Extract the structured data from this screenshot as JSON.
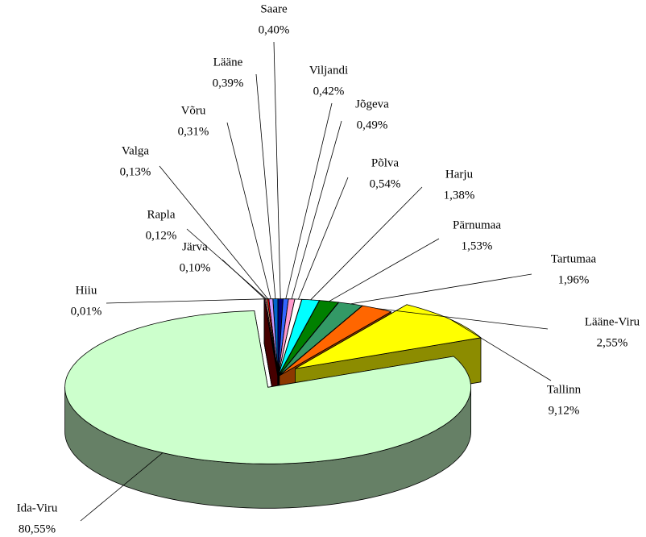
{
  "chart_data": {
    "type": "pie",
    "categories": [
      "Saare",
      "Viljandi",
      "Jõgeva",
      "Põlva",
      "Harju",
      "Pärnumaa",
      "Tartumaa",
      "Lääne-Viru",
      "Tallinn",
      "Ida-Viru",
      "Hiiu",
      "Järva",
      "Rapla",
      "Valga",
      "Võru",
      "Lääne"
    ],
    "values": [
      0.4,
      0.42,
      0.49,
      0.54,
      1.38,
      1.53,
      1.96,
      2.55,
      9.12,
      80.55,
      0.01,
      0.1,
      0.12,
      0.13,
      0.31,
      0.39
    ],
    "value_labels": [
      "0,40%",
      "0,42%",
      "0,49%",
      "0,54%",
      "1,38%",
      "1,53%",
      "1,96%",
      "2,55%",
      "9,12%",
      "80,55%",
      "0,01%",
      "0,10%",
      "0,12%",
      "0,13%",
      "0,31%",
      "0,39%"
    ],
    "colors": [
      "#000080",
      "#3366ff",
      "#ff99cc",
      "#ffffff",
      "#00ffff",
      "#008000",
      "#339966",
      "#ff6600",
      "#ffff00",
      "#ccffcc",
      "#800000",
      "#993366",
      "#ffcc99",
      "#ff0000",
      "#cc99ff",
      "#0066cc"
    ]
  }
}
